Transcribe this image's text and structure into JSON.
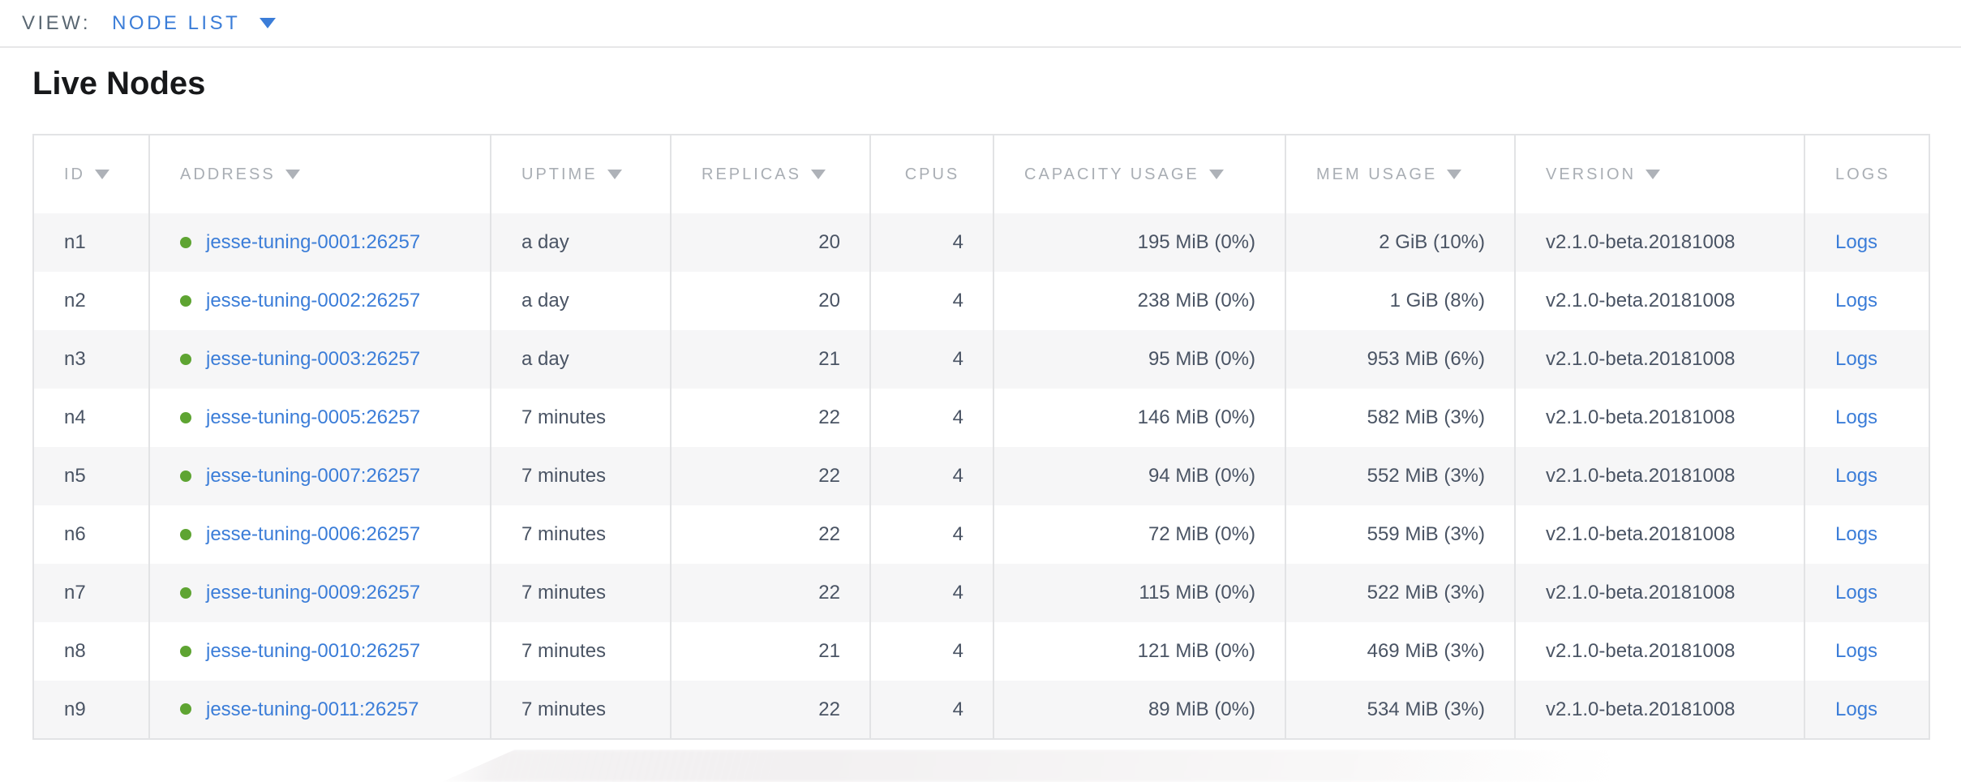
{
  "view_bar": {
    "label": "VIEW:",
    "selected": "NODE LIST",
    "caret_icon": "caret-down-icon"
  },
  "page": {
    "title": "Live Nodes"
  },
  "table": {
    "columns": [
      {
        "key": "id",
        "label": "ID",
        "sortable": true,
        "align": "left",
        "header_align": "left"
      },
      {
        "key": "address",
        "label": "ADDRESS",
        "sortable": true,
        "align": "left",
        "header_align": "left"
      },
      {
        "key": "uptime",
        "label": "UPTIME",
        "sortable": true,
        "align": "left",
        "header_align": "left"
      },
      {
        "key": "replicas",
        "label": "REPLICAS",
        "sortable": true,
        "align": "right",
        "header_align": "left"
      },
      {
        "key": "cpus",
        "label": "CPUS",
        "sortable": false,
        "align": "right",
        "header_align": "center"
      },
      {
        "key": "capacity_usage",
        "label": "CAPACITY USAGE",
        "sortable": true,
        "align": "right",
        "header_align": "left"
      },
      {
        "key": "mem_usage",
        "label": "MEM USAGE",
        "sortable": true,
        "align": "right",
        "header_align": "left"
      },
      {
        "key": "version",
        "label": "VERSION",
        "sortable": true,
        "align": "left",
        "header_align": "left"
      },
      {
        "key": "logs",
        "label": "LOGS",
        "sortable": false,
        "align": "left",
        "header_align": "left"
      }
    ],
    "rows": [
      {
        "id": "n1",
        "status": "live",
        "address": "jesse-tuning-0001:26257",
        "uptime": "a day",
        "replicas": "20",
        "cpus": "4",
        "capacity_usage": "195 MiB (0%)",
        "mem_usage": "2 GiB (10%)",
        "version": "v2.1.0-beta.20181008",
        "logs": "Logs"
      },
      {
        "id": "n2",
        "status": "live",
        "address": "jesse-tuning-0002:26257",
        "uptime": "a day",
        "replicas": "20",
        "cpus": "4",
        "capacity_usage": "238 MiB (0%)",
        "mem_usage": "1 GiB (8%)",
        "version": "v2.1.0-beta.20181008",
        "logs": "Logs"
      },
      {
        "id": "n3",
        "status": "live",
        "address": "jesse-tuning-0003:26257",
        "uptime": "a day",
        "replicas": "21",
        "cpus": "4",
        "capacity_usage": "95 MiB (0%)",
        "mem_usage": "953 MiB (6%)",
        "version": "v2.1.0-beta.20181008",
        "logs": "Logs"
      },
      {
        "id": "n4",
        "status": "live",
        "address": "jesse-tuning-0005:26257",
        "uptime": "7 minutes",
        "replicas": "22",
        "cpus": "4",
        "capacity_usage": "146 MiB (0%)",
        "mem_usage": "582 MiB (3%)",
        "version": "v2.1.0-beta.20181008",
        "logs": "Logs"
      },
      {
        "id": "n5",
        "status": "live",
        "address": "jesse-tuning-0007:26257",
        "uptime": "7 minutes",
        "replicas": "22",
        "cpus": "4",
        "capacity_usage": "94 MiB (0%)",
        "mem_usage": "552 MiB (3%)",
        "version": "v2.1.0-beta.20181008",
        "logs": "Logs"
      },
      {
        "id": "n6",
        "status": "live",
        "address": "jesse-tuning-0006:26257",
        "uptime": "7 minutes",
        "replicas": "22",
        "cpus": "4",
        "capacity_usage": "72 MiB (0%)",
        "mem_usage": "559 MiB (3%)",
        "version": "v2.1.0-beta.20181008",
        "logs": "Logs"
      },
      {
        "id": "n7",
        "status": "live",
        "address": "jesse-tuning-0009:26257",
        "uptime": "7 minutes",
        "replicas": "22",
        "cpus": "4",
        "capacity_usage": "115 MiB (0%)",
        "mem_usage": "522 MiB (3%)",
        "version": "v2.1.0-beta.20181008",
        "logs": "Logs"
      },
      {
        "id": "n8",
        "status": "live",
        "address": "jesse-tuning-0010:26257",
        "uptime": "7 minutes",
        "replicas": "21",
        "cpus": "4",
        "capacity_usage": "121 MiB (0%)",
        "mem_usage": "469 MiB (3%)",
        "version": "v2.1.0-beta.20181008",
        "logs": "Logs"
      },
      {
        "id": "n9",
        "status": "live",
        "address": "jesse-tuning-0011:26257",
        "uptime": "7 minutes",
        "replicas": "22",
        "cpus": "4",
        "capacity_usage": "89 MiB (0%)",
        "mem_usage": "534 MiB (3%)",
        "version": "v2.1.0-beta.20181008",
        "logs": "Logs"
      }
    ]
  },
  "colors": {
    "accent_blue": "#3b7dd8",
    "live_green": "#5ea432",
    "header_text_gray": "#a9aeb4",
    "cell_text": "#4a5464",
    "row_alt_bg": "#f6f6f7",
    "table_border": "#e2e3e5",
    "topbar_label_gray": "#5a6772",
    "title_color": "#17181a"
  }
}
